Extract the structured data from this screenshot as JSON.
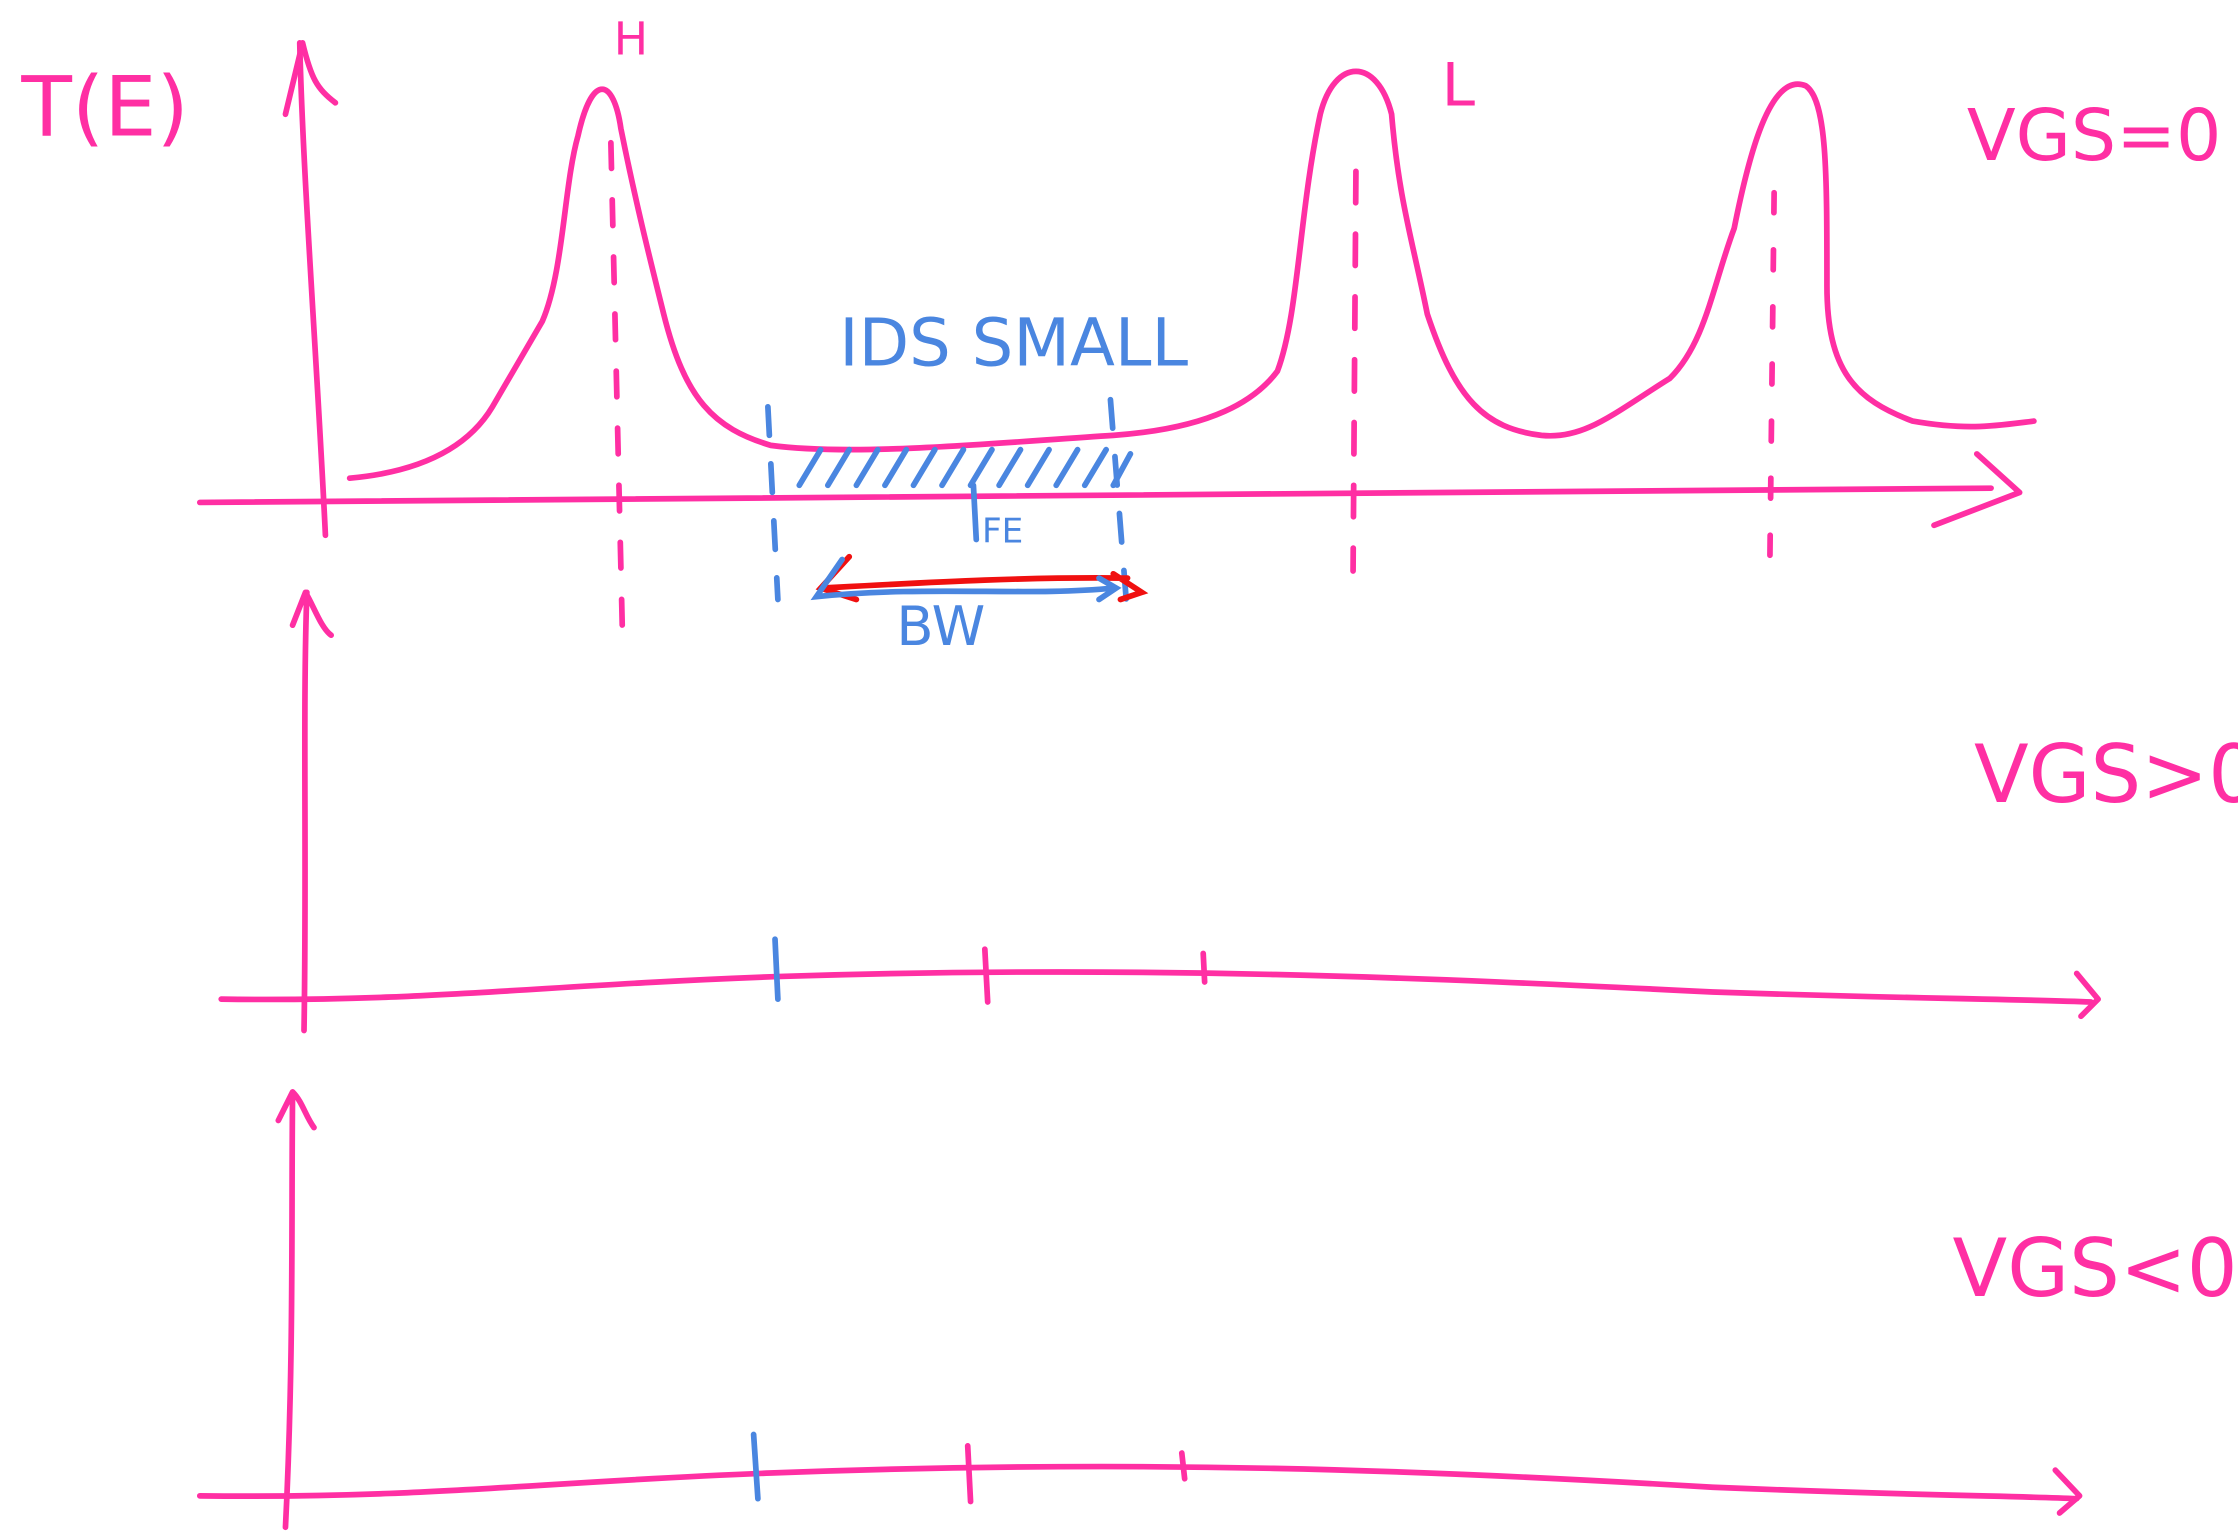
{
  "axis_label": "T(E)",
  "peak_labels": [
    "H",
    "L"
  ],
  "panels": [
    {
      "condition": "VGS=0"
    },
    {
      "condition": "VGS>0"
    },
    {
      "condition": "VGS<0"
    }
  ],
  "annotations": {
    "current": "IDS SMALL",
    "fermi": "FE",
    "bandwidth": "BW"
  }
}
